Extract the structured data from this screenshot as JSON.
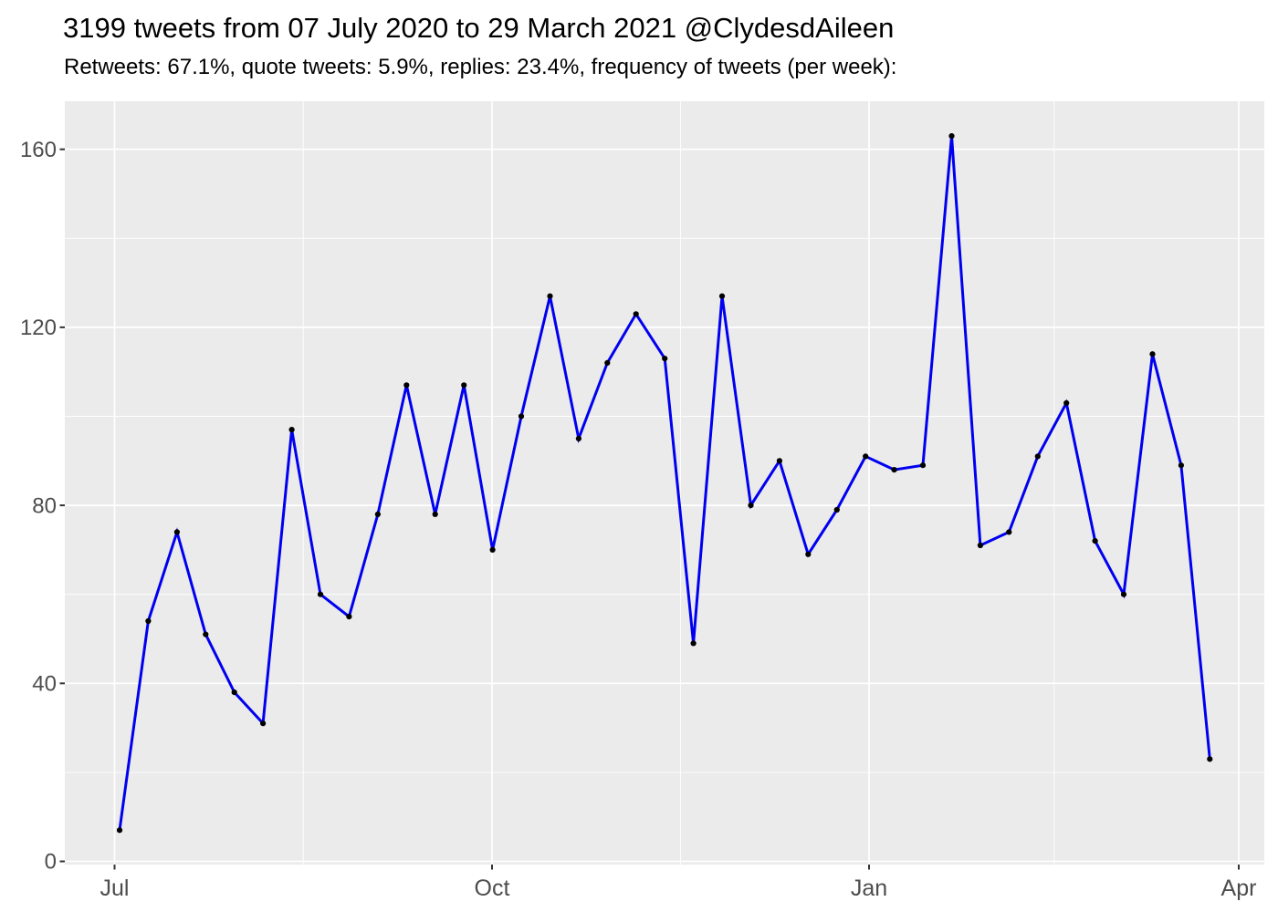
{
  "header": {
    "title": "3199 tweets from 07 July 2020 to 29 March 2021 @ClydesdAileen",
    "subtitle": "Retweets: 67.1%, quote tweets: 5.9%, replies: 23.4%, frequency of tweets (per week):"
  },
  "chart_data": {
    "type": "line",
    "title": "3199 tweets from 07 July 2020 to 29 March 2021 @ClydesdAileen",
    "subtitle": "Retweets: 67.1%, quote tweets: 5.9%, replies: 23.4%, frequency of tweets (per week):",
    "series_name": "tweets per week",
    "x": [
      "2020-07-06",
      "2020-07-13",
      "2020-07-20",
      "2020-07-27",
      "2020-08-03",
      "2020-08-10",
      "2020-08-17",
      "2020-08-24",
      "2020-08-31",
      "2020-09-07",
      "2020-09-14",
      "2020-09-21",
      "2020-09-28",
      "2020-10-05",
      "2020-10-12",
      "2020-10-19",
      "2020-10-26",
      "2020-11-02",
      "2020-11-09",
      "2020-11-16",
      "2020-11-23",
      "2020-11-30",
      "2020-12-07",
      "2020-12-14",
      "2020-12-21",
      "2020-12-28",
      "2021-01-04",
      "2021-01-11",
      "2021-01-18",
      "2021-01-25",
      "2021-02-01",
      "2021-02-08",
      "2021-02-15",
      "2021-02-22",
      "2021-03-01",
      "2021-03-08",
      "2021-03-15",
      "2021-03-22",
      "2021-03-29"
    ],
    "values": [
      7,
      54,
      74,
      51,
      38,
      31,
      97,
      60,
      55,
      78,
      107,
      78,
      107,
      70,
      100,
      127,
      95,
      112,
      123,
      113,
      49,
      127,
      80,
      90,
      69,
      79,
      91,
      88,
      89,
      163,
      71,
      74,
      91,
      103,
      72,
      60,
      114,
      89,
      23
    ],
    "total_tweets": 3199,
    "xlabel": "",
    "ylabel": "",
    "x_tick_labels": [
      "Jul",
      "Oct",
      "Jan",
      "Apr"
    ],
    "y_tick_labels": [
      "0",
      "40",
      "80",
      "120",
      "160"
    ],
    "y_ticks": [
      0,
      40,
      80,
      120,
      160
    ],
    "y_minor_ticks": [
      20,
      60,
      100,
      140
    ],
    "ylim": [
      0,
      170
    ],
    "grid": "on",
    "legend": "none",
    "colors": {
      "line": "#0000F0",
      "point": "#000000",
      "panel_background": "#EBEBEB",
      "gridline": "#FFFFFF",
      "axis_text": "#4D4D4D",
      "tick_mark": "#333333",
      "title_text": "#000000",
      "page_background": "#FFFFFF"
    }
  }
}
